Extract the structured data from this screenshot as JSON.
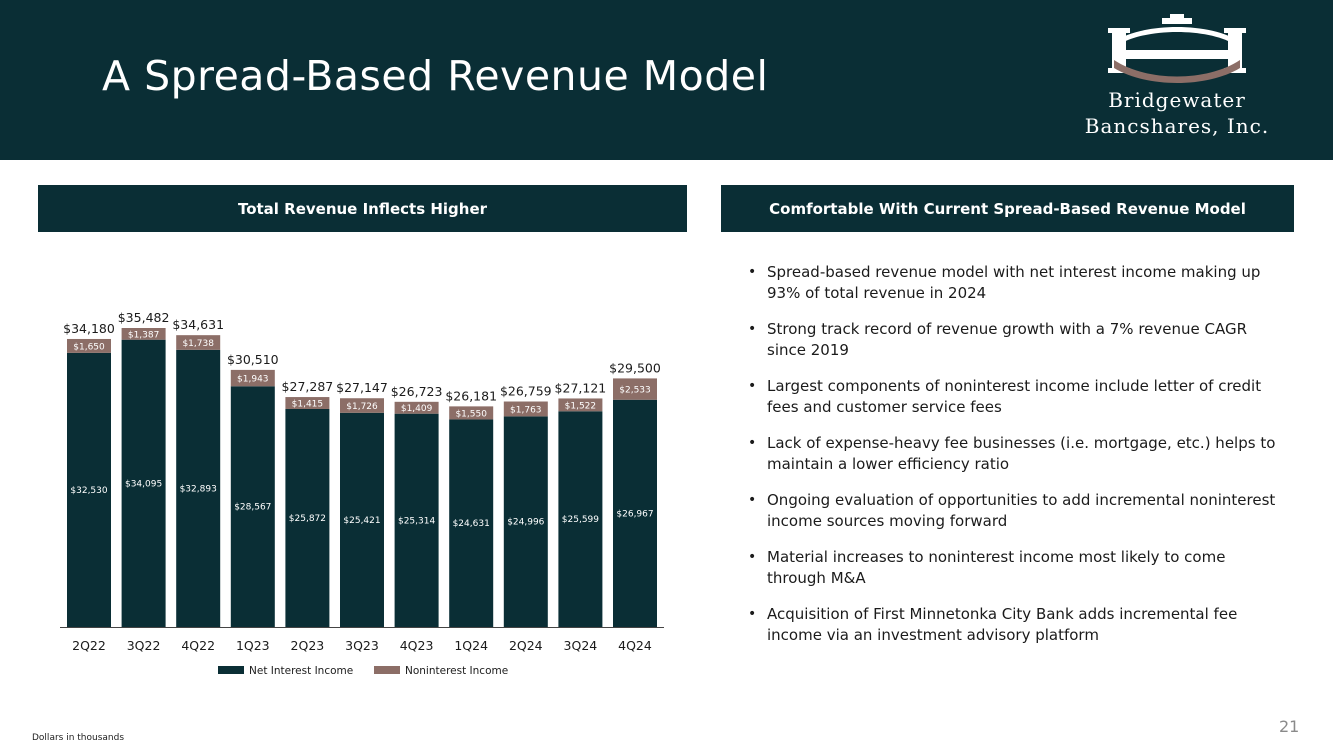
{
  "title": "A Spread-Based Revenue Model",
  "logo": {
    "line1": "Bridgewater",
    "line2": "Bancshares, Inc."
  },
  "left_panel": {
    "title": "Total Revenue Inflects Higher"
  },
  "right_panel": {
    "title": "Comfortable With Current Spread-Based Revenue Model",
    "bullets": [
      "Spread-based revenue model with net interest income making up 93% of total revenue in 2024",
      "Strong track record of revenue growth with a 7% revenue CAGR since 2019",
      "Largest components of noninterest income include letter of credit fees and customer service fees",
      "Lack of expense-heavy fee businesses (i.e. mortgage, etc.) helps to maintain a lower efficiency ratio",
      "Ongoing evaluation of opportunities to add incremental noninterest income sources moving forward",
      "Material increases to noninterest income most likely to come through M&A",
      "Acquisition of First Minnetonka City Bank adds incremental fee income via an investment advisory platform"
    ]
  },
  "colors": {
    "navy": "#0a2e35",
    "mauve": "#8c6e67",
    "white": "#ffffff"
  },
  "chart_data": {
    "type": "bar",
    "stacked": true,
    "categories": [
      "2Q22",
      "3Q22",
      "4Q22",
      "1Q23",
      "2Q23",
      "3Q23",
      "4Q23",
      "1Q24",
      "2Q24",
      "3Q24",
      "4Q24"
    ],
    "series": [
      {
        "name": "Net Interest Income",
        "color": "#0a2e35",
        "values": [
          32530,
          34095,
          32893,
          28567,
          25872,
          25421,
          25314,
          24631,
          24996,
          25599,
          26967
        ],
        "labels": [
          "$32,530",
          "$34,095",
          "$32,893",
          "$28,567",
          "$25,872",
          "$25,421",
          "$25,314",
          "$24,631",
          "$24,996",
          "$25,599",
          "$26,967"
        ]
      },
      {
        "name": "Noninterest Income",
        "color": "#8c6e67",
        "values": [
          1650,
          1387,
          1738,
          1943,
          1415,
          1726,
          1409,
          1550,
          1763,
          1522,
          2533
        ],
        "labels": [
          "$1,650",
          "$1,387",
          "$1,738",
          "$1,943",
          "$1,415",
          "$1,726",
          "$1,409",
          "$1,550",
          "$1,763",
          "$1,522",
          "$2,533"
        ]
      }
    ],
    "totals": [
      34180,
      35482,
      34631,
      30510,
      27287,
      27147,
      26723,
      26181,
      26759,
      27121,
      29500
    ],
    "total_labels": [
      "$34,180",
      "$35,482",
      "$34,631",
      "$30,510",
      "$27,287",
      "$27,147",
      "$26,723",
      "$26,181",
      "$26,759",
      "$27,121",
      "$29,500"
    ],
    "ylim": [
      0,
      35482
    ],
    "legend": "bottom",
    "title": "",
    "xlabel": "",
    "ylabel": ""
  },
  "footnote": "Dollars in thousands",
  "page_number": "21"
}
